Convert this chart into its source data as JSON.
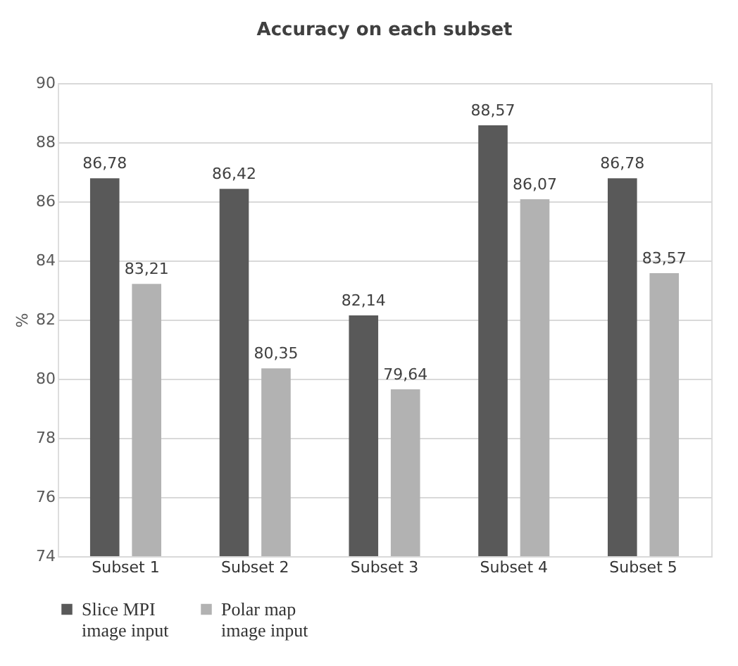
{
  "chart_data": {
    "type": "bar",
    "title": "Accuracy on each subset",
    "ylabel": "%",
    "categories": [
      "Subset 1",
      "Subset 2",
      "Subset 3",
      "Subset 4",
      "Subset 5"
    ],
    "series": [
      {
        "name": "Slice MPI image input",
        "color": "#595959",
        "values": [
          86.78,
          86.42,
          82.14,
          88.57,
          86.78
        ],
        "value_labels": [
          "86,78",
          "86,42",
          "82,14",
          "88,57",
          "86,78"
        ]
      },
      {
        "name": "Polar map image input",
        "color": "#b2b2b2",
        "values": [
          83.21,
          80.35,
          79.64,
          86.07,
          83.57
        ],
        "value_labels": [
          "83,21",
          "80,35",
          "79,64",
          "86,07",
          "83,57"
        ]
      }
    ],
    "ylim": [
      74,
      90
    ],
    "yticks": [
      74,
      76,
      78,
      80,
      82,
      84,
      86,
      88,
      90
    ],
    "grid": "y",
    "legend": "bottom"
  }
}
